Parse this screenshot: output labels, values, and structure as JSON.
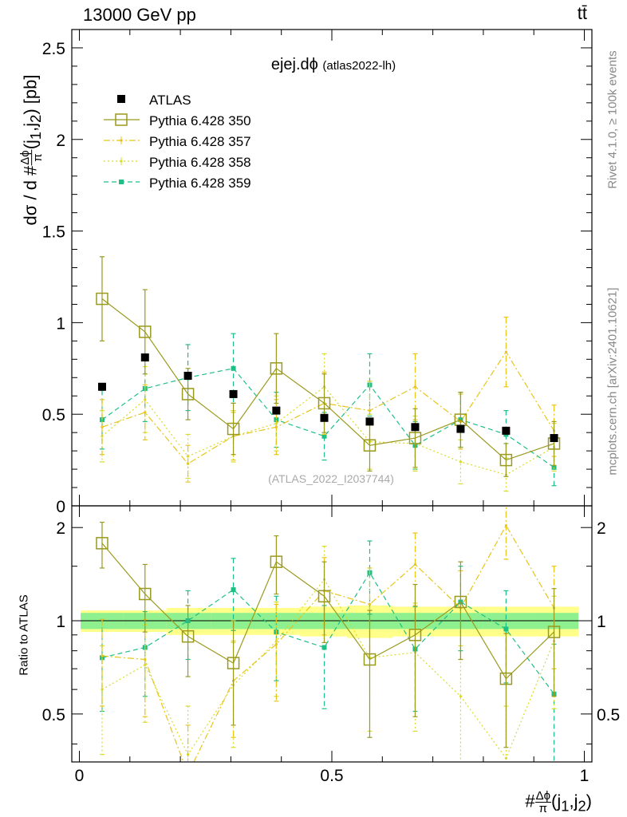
{
  "header": {
    "left": "13000 GeV pp",
    "right": "tt̄",
    "side_top": "Rivet 4.1.0, ≥ 100k events",
    "side_bottom": "mcplots.cern.ch [arXiv:2401.10621]"
  },
  "plot": {
    "title_main": "ejej.dϕ",
    "title_sub": "(atlas2022-lh)",
    "watermark": "(ATLAS_2022_I2037744)",
    "ylabel_top_pre": "dσ / d #",
    "ylabel_top_post": "(j",
    "ylabel_top_end": ") [pb]",
    "ylabel_bottom": "Ratio to ATLAS",
    "xlabel_pre": "#",
    "xlabel_post": "(j",
    "xlabel_end": ")",
    "frac_num": "Δϕ",
    "frac_den": "π",
    "sub1": "1",
    "sub2": "2"
  },
  "colors": {
    "atlas": "#000000",
    "p350": "#9a9a1e",
    "p357": "#e8c51a",
    "p358": "#d8dc2a",
    "p359": "#1dbf84",
    "band_outer": "#ffff8a",
    "band_inner": "#8ef08e"
  },
  "chart_data": {
    "type": "scatter",
    "x": [
      0.045,
      0.13,
      0.215,
      0.305,
      0.39,
      0.485,
      0.575,
      0.665,
      0.755,
      0.845,
      0.94
    ],
    "xlim": [
      -0.015,
      1.015
    ],
    "xticks": [
      0,
      0.5,
      1
    ],
    "xtick_labels": [
      "0",
      "0.5",
      "1"
    ],
    "main": {
      "ylim": [
        0,
        2.6
      ],
      "yticks": [
        0,
        0.5,
        1,
        1.5,
        2,
        2.5
      ],
      "ytick_labels": [
        "0",
        "0.5",
        "1",
        "1.5",
        "2",
        "2.5"
      ]
    },
    "ratio": {
      "ylim": [
        0.35,
        2.35
      ],
      "yticks": [
        0.5,
        1,
        2
      ],
      "ytick_labels": [
        "0.5",
        "1",
        "2"
      ],
      "band_inner": [
        0.06,
        0.06,
        0.06,
        0.06,
        0.06,
        0.06,
        0.06,
        0.06,
        0.06,
        0.06,
        0.06
      ],
      "band_outer": [
        0.08,
        0.08,
        0.1,
        0.1,
        0.1,
        0.11,
        0.12,
        0.11,
        0.11,
        0.11,
        0.11
      ]
    },
    "legend": [
      "ATLAS",
      "Pythia 6.428 350",
      "Pythia 6.428 357",
      "Pythia 6.428 358",
      "Pythia 6.428 359"
    ],
    "series": [
      {
        "name": "ATLAS",
        "style": "square-filled",
        "values": [
          0.65,
          0.81,
          0.71,
          0.61,
          0.52,
          0.48,
          0.46,
          0.43,
          0.42,
          0.41,
          0.37
        ],
        "errors": [
          0.01,
          0.01,
          0.01,
          0.01,
          0.01,
          0.01,
          0.01,
          0.01,
          0.01,
          0.01,
          0.01
        ],
        "ratio": [
          1,
          1,
          1,
          1,
          1,
          1,
          1,
          1,
          1,
          1,
          1
        ]
      },
      {
        "name": "Pythia 6.428 350",
        "style": "square-open-solid",
        "values": [
          1.13,
          0.95,
          0.61,
          0.42,
          0.75,
          0.56,
          0.33,
          0.37,
          0.47,
          0.25,
          0.34
        ],
        "errors": [
          0.23,
          0.23,
          0.14,
          0.14,
          0.19,
          0.16,
          0.14,
          0.16,
          0.15,
          0.09,
          0.12
        ],
        "ratio": [
          1.78,
          1.22,
          0.89,
          0.73,
          1.55,
          1.2,
          0.75,
          0.9,
          1.15,
          0.65,
          0.92
        ],
        "ratio_err": [
          0.3,
          0.3,
          0.23,
          0.27,
          0.33,
          0.35,
          0.33,
          0.41,
          0.4,
          0.26,
          0.35
        ]
      },
      {
        "name": "Pythia 6.428 357",
        "style": "dashdot",
        "values": [
          0.43,
          0.51,
          0.23,
          0.38,
          0.43,
          0.56,
          0.52,
          0.65,
          0.46,
          0.84,
          0.41
        ],
        "errors": [
          0.15,
          0.15,
          0.1,
          0.13,
          0.15,
          0.17,
          0.16,
          0.18,
          0.15,
          0.19,
          0.14
        ],
        "ratio": [
          0.77,
          0.75,
          0.32,
          0.64,
          0.84,
          1.25,
          1.13,
          1.52,
          1.1,
          2.03,
          1.1
        ],
        "ratio_err": [
          0.24,
          0.26,
          0.14,
          0.22,
          0.29,
          0.35,
          0.35,
          0.4,
          0.35,
          0.45,
          0.4
        ]
      },
      {
        "name": "Pythia 6.428 358",
        "style": "dotted",
        "values": [
          0.38,
          0.58,
          0.27,
          0.38,
          0.45,
          0.65,
          0.35,
          0.34,
          0.24,
          0.17,
          0.32
        ],
        "errors": [
          0.14,
          0.18,
          0.12,
          0.14,
          0.15,
          0.18,
          0.15,
          0.15,
          0.12,
          0.09,
          0.13
        ],
        "ratio": [
          0.6,
          0.72,
          0.37,
          0.62,
          0.86,
          1.36,
          0.76,
          0.79,
          0.57,
          0.36,
          0.86
        ],
        "ratio_err": [
          0.23,
          0.25,
          0.16,
          0.23,
          0.29,
          0.38,
          0.32,
          0.35,
          0.26,
          0.17,
          0.34
        ]
      },
      {
        "name": "Pythia 6.428 359",
        "style": "dashed-square",
        "values": [
          0.47,
          0.64,
          0.7,
          0.75,
          0.47,
          0.38,
          0.66,
          0.33,
          0.47,
          0.39,
          0.21
        ],
        "errors": [
          0.16,
          0.18,
          0.18,
          0.19,
          0.15,
          0.13,
          0.17,
          0.13,
          0.15,
          0.13,
          0.1
        ],
        "ratio": [
          0.76,
          0.82,
          1.0,
          1.26,
          0.92,
          0.82,
          1.43,
          0.81,
          1.15,
          0.94,
          0.58
        ],
        "ratio_err": [
          0.25,
          0.25,
          0.25,
          0.33,
          0.28,
          0.3,
          0.38,
          0.3,
          0.35,
          0.31,
          0.26
        ]
      }
    ]
  }
}
